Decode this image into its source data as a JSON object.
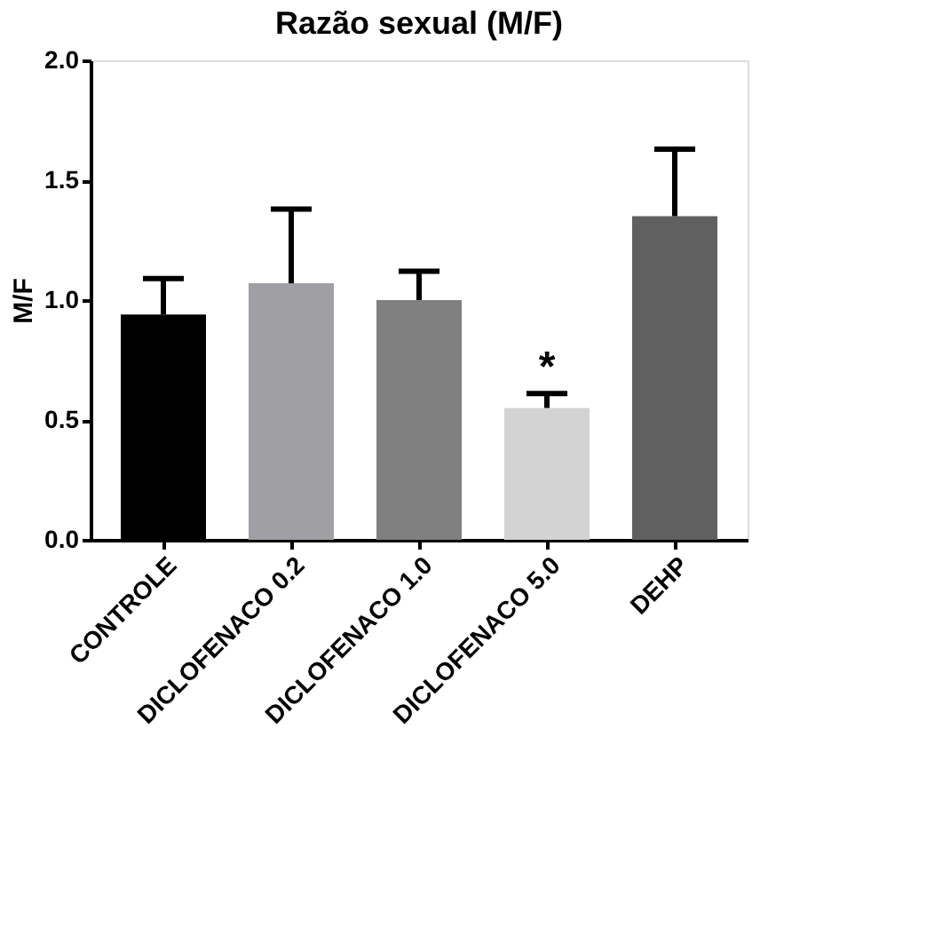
{
  "chart_data": {
    "type": "bar",
    "title": "Razão sexual (M/F)",
    "ylabel": "M/F",
    "categories": [
      "CONTROLE",
      "DICLOFENACO 0.2",
      "DICLOFENACO 1.0",
      "DICLOFENACO 5.0",
      "DEHP"
    ],
    "values": [
      0.94,
      1.07,
      1.0,
      0.55,
      1.35
    ],
    "colors": [
      "#000000",
      "#a0a0a4",
      "#808080",
      "#d3d3d3",
      "#606060"
    ],
    "errors": [
      [
        0.94,
        1.09
      ],
      [
        1.07,
        1.38
      ],
      [
        1.0,
        1.12
      ],
      [
        0.55,
        0.61
      ],
      [
        1.35,
        1.63
      ]
    ],
    "annotations": [
      "*"
    ],
    "ylim": [
      0,
      2.0
    ],
    "yticks": [
      {
        "value": 0,
        "label": "0.0"
      },
      {
        "value": 0.5,
        "label": "0.5"
      },
      {
        "value": 1.0,
        "label": "1.0"
      },
      {
        "value": 1.5,
        "label": "1.5"
      },
      {
        "value": 2.0,
        "label": "2.0"
      }
    ],
    "grid": false
  }
}
